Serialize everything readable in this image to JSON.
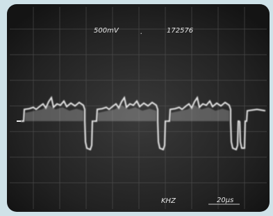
{
  "screen": {
    "volts_per_div": "500mV",
    "separator": ".",
    "counter": "172576",
    "frequency_unit": "KHZ",
    "time_per_div": "20µs"
  }
}
